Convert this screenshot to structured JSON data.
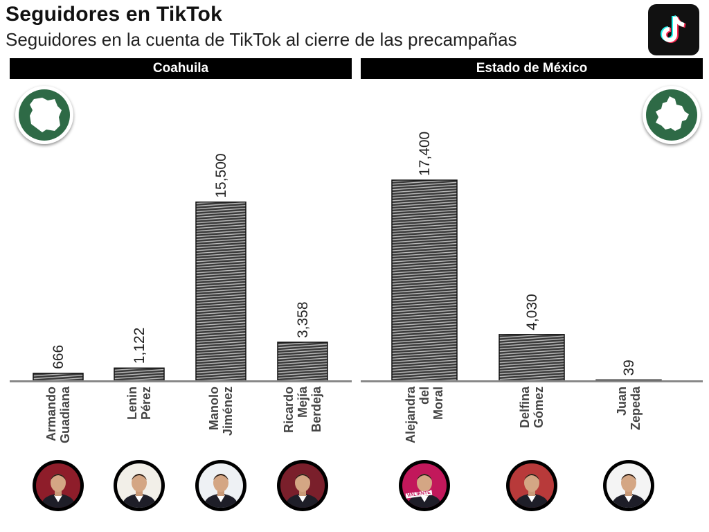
{
  "header": {
    "title": "Seguidores en TikTok",
    "subtitle": "Seguidores en la cuenta de TikTok al cierre de las precampañas",
    "logo_icon": "tiktok-logo-icon"
  },
  "panels": [
    {
      "label": "Coahuila",
      "badge_icon": "coahuila-map-icon",
      "badge_color": "#2e6a46"
    },
    {
      "label": "Estado de México",
      "badge_icon": "estado-de-mexico-map-icon",
      "badge_color": "#2e6a46"
    }
  ],
  "chart_data": [
    {
      "type": "bar",
      "title": "Coahuila",
      "categories": [
        "Armando Guadiana",
        "Lenin Pérez",
        "Manolo Jiménez",
        "Ricardo Mejía Berdeja"
      ],
      "values": [
        666,
        1122,
        15500,
        3358
      ],
      "value_labels": [
        "666",
        "1,122",
        "15,500",
        "3,358"
      ],
      "ylim": [
        0,
        17400
      ],
      "grid": false,
      "legend": "none"
    },
    {
      "type": "bar",
      "title": "Estado de México",
      "categories": [
        "Alejandra del Moral",
        "Delfina Gómez",
        "Juan Zepeda"
      ],
      "values": [
        17400,
        4030,
        39
      ],
      "value_labels": [
        "17,400",
        "4,030",
        "39"
      ],
      "ylim": [
        0,
        17400
      ],
      "grid": false,
      "legend": "none"
    }
  ],
  "candidates": [
    {
      "line1": "Armando",
      "line2": "Guadiana",
      "line3": "",
      "photo_bg": "#8e1d2a",
      "photo_icon": "candidate-photo-icon"
    },
    {
      "line1": "Lenin",
      "line2": "Pérez",
      "line3": "",
      "photo_bg": "#f2efe8",
      "photo_icon": "candidate-photo-icon"
    },
    {
      "line1": "Manolo",
      "line2": "Jiménez",
      "line3": "",
      "photo_bg": "#eef1f4",
      "photo_icon": "candidate-photo-icon"
    },
    {
      "line1": "Ricardo",
      "line2": "Mejía",
      "line3": "Berdeja",
      "photo_bg": "#7a1f2b",
      "photo_icon": "candidate-photo-icon"
    },
    {
      "line1": "Alejandra",
      "line2": "del",
      "line3": "Moral",
      "photo_bg": "#c2185b",
      "photo_icon": "candidate-photo-icon",
      "photo_caption": "VALIENTE"
    },
    {
      "line1": "Delfina",
      "line2": "Gómez",
      "line3": "",
      "photo_bg": "#b83a3a",
      "photo_icon": "candidate-photo-icon"
    },
    {
      "line1": "Juan",
      "line2": "Zepeda",
      "line3": "",
      "photo_bg": "#f4f4f4",
      "photo_icon": "candidate-photo-icon"
    }
  ],
  "colors": {
    "bar_fill": "#3a3a3a",
    "bar_stripe": "#bdbdbd",
    "baseline": "#888888",
    "header_bg": "#000000"
  }
}
